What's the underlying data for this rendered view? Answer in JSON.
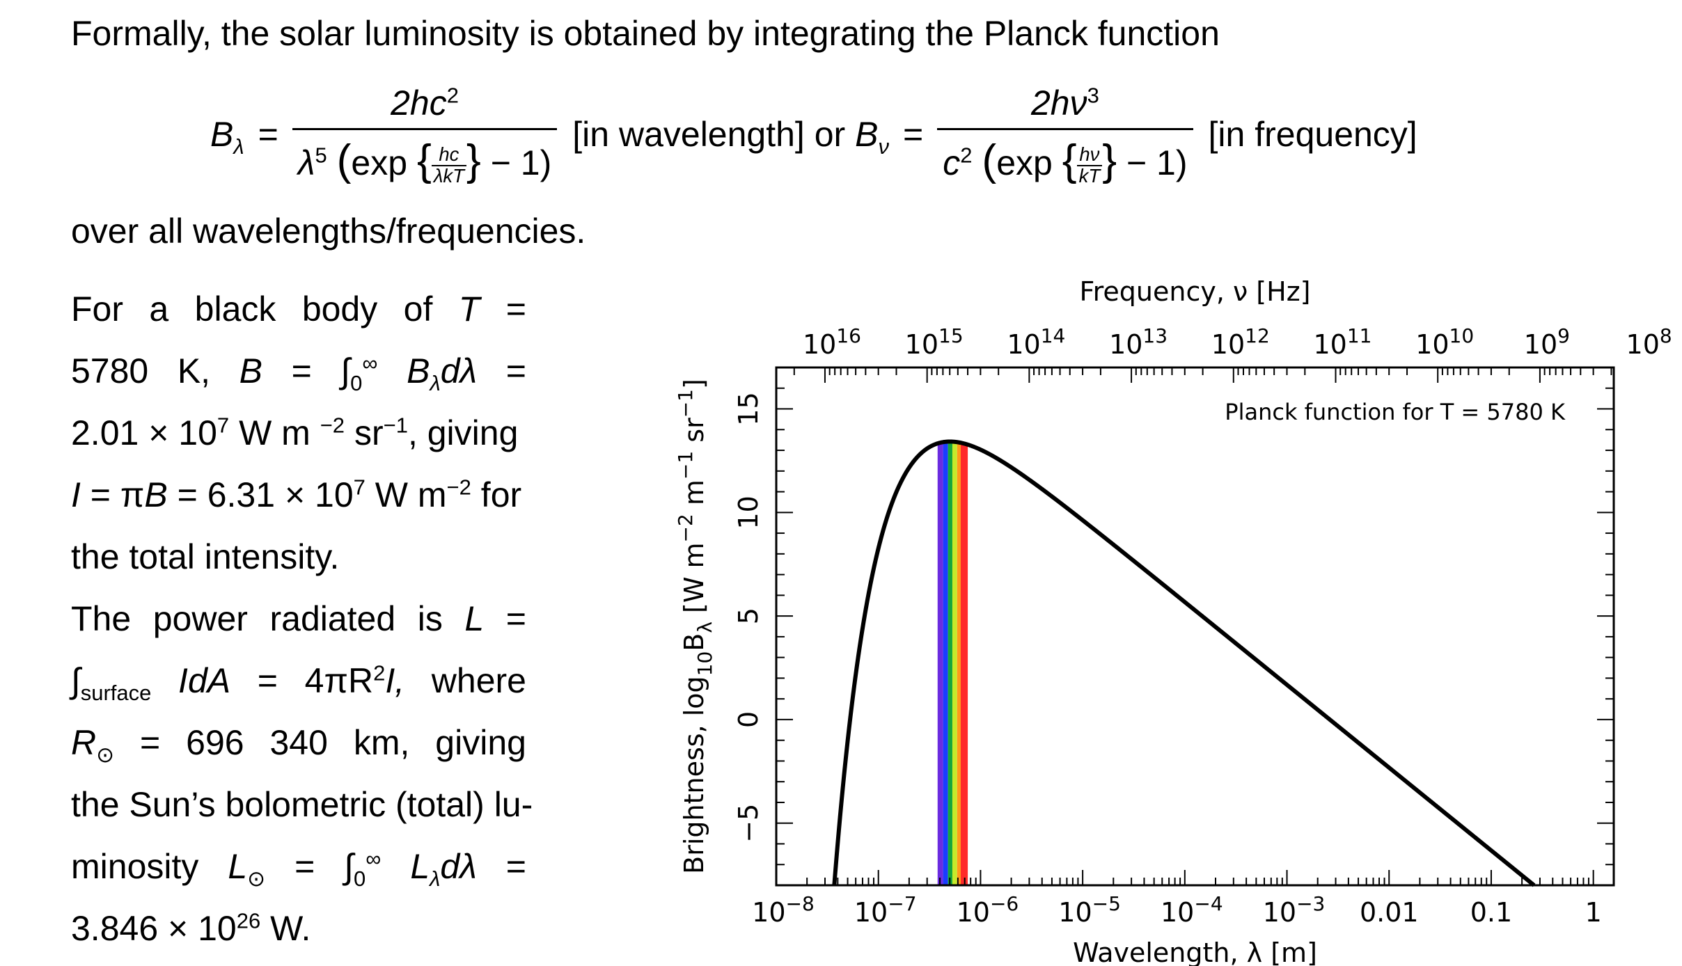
{
  "text": {
    "intro": "Formally, the solar luminosity is obtained by integrating the Planck function",
    "eq_B_lambda": "B",
    "eq_lambda_sub": "λ",
    "eq_num_1": "2hc",
    "eq_num_1_sup": "2",
    "eq_lambda5": "λ",
    "eq_lambda5_sup": "5",
    "eq_exp": "exp",
    "eq_hc": "hc",
    "eq_lambdakT": "λkT",
    "eq_minus_one": "− 1)",
    "eq_in_wavelength": "[in wavelength] or",
    "eq_B_nu": "B",
    "eq_nu_sub": "ν",
    "eq_num_2": "2hν",
    "eq_num_2_sup": "3",
    "eq_c": "c",
    "eq_c_sup": "2",
    "eq_hnu": "hν",
    "eq_kT": "kT",
    "eq_in_frequency": "[in frequency]",
    "over_all": "over all wavelengths/frequencies.",
    "para1": [
      "For a black body of T =",
      "5780 K, B = ∫",
      "2.01 × 10",
      "I = πB = 6.31 × 10",
      "the total intensity."
    ],
    "p1_l1_a": "For",
    "p1_l1_b": "a",
    "p1_l1_c": "black",
    "p1_l1_d": "body",
    "p1_l1_e": "of",
    "p1_l1_T": "T",
    "p1_l1_eq": "=",
    "p1_l2_a": "5780",
    "p1_l2_b": "K,",
    "p1_l2_B": "B",
    "p1_l2_eq": "=",
    "p1_l2_int_upper": "∞",
    "p1_l2_int_lower": "0",
    "p1_l2_expr": "B",
    "p1_l2_expr_sub": "λ",
    "p1_l2_dl": "dλ",
    "p1_l2_eq2": "=",
    "p1_l3_a": "2.01 × 10",
    "p1_l3_sup": "7",
    "p1_l3_b": " W m ",
    "p1_l3_sup2": "−2",
    "p1_l3_c": " sr",
    "p1_l3_sup3": "−1",
    "p1_l3_d": ", giving",
    "p1_l4_a": "I",
    "p1_l4_b": " = π",
    "p1_l4_c": "B",
    "p1_l4_d": " = 6.31 × 10",
    "p1_l4_sup": "7",
    "p1_l4_e": " W m",
    "p1_l4_sup2": "−2",
    "p1_l4_f": " for",
    "p1_l5": "the total intensity.",
    "p2_l1_a": "The",
    "p2_l1_b": "power",
    "p2_l1_c": "radiated",
    "p2_l1_d": "is",
    "p2_l1_L": "L",
    "p2_l1_eq": "=",
    "p2_l2_sub": "surface",
    "p2_l2_IdA": "IdA",
    "p2_l2_eq": "=",
    "p2_l2_expr": "4πR",
    "p2_l2_sup": "2",
    "p2_l2_I": "I,",
    "p2_l2_where": "where",
    "p2_l3_R": "R",
    "p2_l3_sun": "⊙",
    "p2_l3_eq": "=",
    "p2_l3_val": "696 340",
    "p2_l3_km": "km,",
    "p2_l3_giving": "giving",
    "p2_l4": "the Sun’s bolometric (total) lu-",
    "p2_l5_a": "minosity",
    "p2_l5_L": "L",
    "p2_l5_sun": "⊙",
    "p2_l5_eq": "=",
    "p2_l5_int_upper": "∞",
    "p2_l5_int_lower": "0",
    "p2_l5_expr": "L",
    "p2_l5_expr_sub": "λ",
    "p2_l5_dl": "dλ",
    "p2_l5_eq2": "=",
    "p2_l6_a": "3.846 × 10",
    "p2_l6_sup": "26",
    "p2_l6_b": " W."
  },
  "chart_data": {
    "type": "line",
    "title": "Planck function for T = 5780 K",
    "xlabel": "Wavelength, λ [m]",
    "x2label": "Frequency, ν [Hz]",
    "ylabel_parts": [
      "Brightness, log",
      "10",
      "B",
      "λ",
      " [W m",
      "−2",
      " m",
      "−1",
      " sr",
      "−1",
      "]"
    ],
    "x_scale": "log",
    "xlim_log10": [
      -8,
      0.2
    ],
    "ylim": [
      -8,
      17
    ],
    "x_ticks": [
      {
        "base": "10",
        "exp": "−8",
        "log": -8
      },
      {
        "base": "10",
        "exp": "−7",
        "log": -7
      },
      {
        "base": "10",
        "exp": "−6",
        "log": -6
      },
      {
        "base": "10",
        "exp": "−5",
        "log": -5
      },
      {
        "base": "10",
        "exp": "−4",
        "log": -4
      },
      {
        "base": "10",
        "exp": "−3",
        "log": -3
      },
      {
        "base": "",
        "exp": "",
        "label": "0.01",
        "log": -2
      },
      {
        "base": "",
        "exp": "",
        "label": "0.1",
        "log": -1
      },
      {
        "base": "",
        "exp": "",
        "label": "1",
        "log": 0
      }
    ],
    "x2_ticks": [
      {
        "base": "10",
        "exp": "16",
        "log": 16
      },
      {
        "base": "10",
        "exp": "15",
        "log": 15
      },
      {
        "base": "10",
        "exp": "14",
        "log": 14
      },
      {
        "base": "10",
        "exp": "13",
        "log": 13
      },
      {
        "base": "10",
        "exp": "12",
        "log": 12
      },
      {
        "base": "10",
        "exp": "11",
        "log": 11
      },
      {
        "base": "10",
        "exp": "10",
        "log": 10
      },
      {
        "base": "10",
        "exp": "9",
        "log": 9
      },
      {
        "base": "10",
        "exp": "8",
        "log": 8
      }
    ],
    "y_ticks": [
      {
        "label": "−5",
        "v": -5
      },
      {
        "label": "0",
        "v": 0
      },
      {
        "label": "5",
        "v": 5
      },
      {
        "label": "10",
        "v": 10
      },
      {
        "label": "15",
        "v": 15
      }
    ],
    "temperature_K": 5780,
    "visible_bands": [
      {
        "from_nm": 380,
        "to_nm": 430,
        "color": "#6a2be0"
      },
      {
        "from_nm": 430,
        "to_nm": 480,
        "color": "#1a3cff"
      },
      {
        "from_nm": 480,
        "to_nm": 530,
        "color": "#16a63c"
      },
      {
        "from_nm": 530,
        "to_nm": 590,
        "color": "#c6ea2a"
      },
      {
        "from_nm": 590,
        "to_nm": 640,
        "color": "#ff9a1a"
      },
      {
        "from_nm": 640,
        "to_nm": 750,
        "color": "#ff2a2a"
      }
    ],
    "series": [
      {
        "type": "planck",
        "T": 5780,
        "color": "#000000"
      }
    ]
  }
}
